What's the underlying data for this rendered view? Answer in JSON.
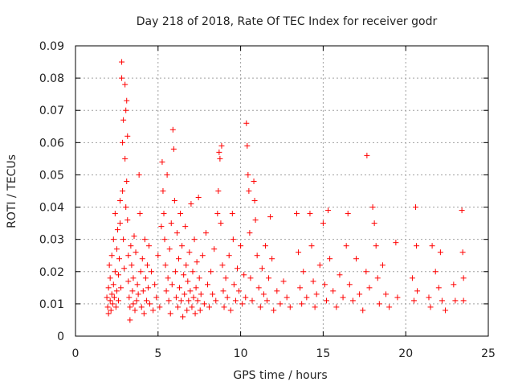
{
  "chart_data": {
    "type": "scatter",
    "title": "Day 218 of 2018, Rate Of TEC Index for receiver godr",
    "xlabel": "GPS time / hours",
    "ylabel": "ROTI / TECUs",
    "xlim": [
      0,
      25
    ],
    "ylim": [
      0,
      0.09
    ],
    "xticks": [
      0,
      5,
      10,
      15,
      20,
      25
    ],
    "xtick_labels": [
      "0",
      "5",
      "10",
      "15",
      "20",
      "25"
    ],
    "yticks": [
      0,
      0.01,
      0.02,
      0.03,
      0.04,
      0.05,
      0.06,
      0.07,
      0.08,
      0.09
    ],
    "ytick_labels": [
      "0",
      "0.01",
      "0.02",
      "0.03",
      "0.04",
      "0.05",
      "0.06",
      "0.07",
      "0.08",
      "0.09"
    ],
    "grid": true,
    "marker": "plus",
    "color": "#ff0000",
    "points": [
      [
        1.9,
        0.012
      ],
      [
        1.95,
        0.009
      ],
      [
        2.0,
        0.015
      ],
      [
        2.0,
        0.007
      ],
      [
        2.05,
        0.022
      ],
      [
        2.1,
        0.011
      ],
      [
        2.1,
        0.018
      ],
      [
        2.15,
        0.008
      ],
      [
        2.2,
        0.013
      ],
      [
        2.2,
        0.025
      ],
      [
        2.25,
        0.01
      ],
      [
        2.3,
        0.016
      ],
      [
        2.3,
        0.03
      ],
      [
        2.35,
        0.012
      ],
      [
        2.4,
        0.02
      ],
      [
        2.4,
        0.038
      ],
      [
        2.45,
        0.009
      ],
      [
        2.5,
        0.014
      ],
      [
        2.5,
        0.027
      ],
      [
        2.55,
        0.033
      ],
      [
        2.6,
        0.011
      ],
      [
        2.6,
        0.019
      ],
      [
        2.65,
        0.024
      ],
      [
        2.7,
        0.035
      ],
      [
        2.7,
        0.042
      ],
      [
        2.75,
        0.015
      ],
      [
        2.8,
        0.085
      ],
      [
        2.8,
        0.08
      ],
      [
        2.85,
        0.06
      ],
      [
        2.85,
        0.045
      ],
      [
        2.9,
        0.067
      ],
      [
        2.9,
        0.03
      ],
      [
        2.95,
        0.021
      ],
      [
        3.0,
        0.078
      ],
      [
        3.0,
        0.055
      ],
      [
        3.05,
        0.07
      ],
      [
        3.05,
        0.04
      ],
      [
        3.1,
        0.073
      ],
      [
        3.1,
        0.048
      ],
      [
        3.15,
        0.062
      ],
      [
        3.15,
        0.036
      ],
      [
        3.2,
        0.025
      ],
      [
        3.2,
        0.017
      ],
      [
        3.25,
        0.012
      ],
      [
        3.3,
        0.009
      ],
      [
        3.3,
        0.005
      ],
      [
        3.35,
        0.028
      ],
      [
        3.4,
        0.022
      ],
      [
        3.45,
        0.014
      ],
      [
        3.5,
        0.018
      ],
      [
        3.5,
        0.01
      ],
      [
        3.55,
        0.031
      ],
      [
        3.6,
        0.008
      ],
      [
        3.65,
        0.026
      ],
      [
        3.7,
        0.011
      ],
      [
        3.75,
        0.016
      ],
      [
        3.8,
        0.013
      ],
      [
        3.85,
        0.05
      ],
      [
        3.9,
        0.038
      ],
      [
        3.95,
        0.02
      ],
      [
        4.0,
        0.009
      ],
      [
        4.05,
        0.024
      ],
      [
        4.1,
        0.014
      ],
      [
        4.15,
        0.007
      ],
      [
        4.2,
        0.03
      ],
      [
        4.25,
        0.018
      ],
      [
        4.3,
        0.011
      ],
      [
        4.35,
        0.022
      ],
      [
        4.4,
        0.015
      ],
      [
        4.45,
        0.028
      ],
      [
        4.5,
        0.01
      ],
      [
        4.6,
        0.02
      ],
      [
        4.7,
        0.008
      ],
      [
        4.8,
        0.016
      ],
      [
        4.9,
        0.012
      ],
      [
        5.0,
        0.025
      ],
      [
        5.1,
        0.009
      ],
      [
        5.2,
        0.034
      ],
      [
        5.25,
        0.054
      ],
      [
        5.3,
        0.045
      ],
      [
        5.35,
        0.038
      ],
      [
        5.4,
        0.03
      ],
      [
        5.45,
        0.022
      ],
      [
        5.5,
        0.014
      ],
      [
        5.55,
        0.05
      ],
      [
        5.6,
        0.018
      ],
      [
        5.65,
        0.011
      ],
      [
        5.7,
        0.027
      ],
      [
        5.75,
        0.007
      ],
      [
        5.8,
        0.035
      ],
      [
        5.85,
        0.016
      ],
      [
        5.9,
        0.064
      ],
      [
        5.95,
        0.058
      ],
      [
        6.0,
        0.042
      ],
      [
        6.05,
        0.02
      ],
      [
        6.1,
        0.012
      ],
      [
        6.15,
        0.032
      ],
      [
        6.2,
        0.009
      ],
      [
        6.25,
        0.024
      ],
      [
        6.3,
        0.015
      ],
      [
        6.35,
        0.038
      ],
      [
        6.4,
        0.011
      ],
      [
        6.45,
        0.028
      ],
      [
        6.5,
        0.006
      ],
      [
        6.55,
        0.019
      ],
      [
        6.6,
        0.013
      ],
      [
        6.65,
        0.034
      ],
      [
        6.7,
        0.022
      ],
      [
        6.75,
        0.008
      ],
      [
        6.8,
        0.017
      ],
      [
        6.85,
        0.011
      ],
      [
        6.9,
        0.026
      ],
      [
        6.95,
        0.014
      ],
      [
        7.0,
        0.041
      ],
      [
        7.05,
        0.009
      ],
      [
        7.1,
        0.02
      ],
      [
        7.15,
        0.012
      ],
      [
        7.2,
        0.03
      ],
      [
        7.25,
        0.007
      ],
      [
        7.3,
        0.015
      ],
      [
        7.35,
        0.023
      ],
      [
        7.4,
        0.011
      ],
      [
        7.45,
        0.043
      ],
      [
        7.5,
        0.018
      ],
      [
        7.55,
        0.008
      ],
      [
        7.6,
        0.013
      ],
      [
        7.7,
        0.025
      ],
      [
        7.8,
        0.01
      ],
      [
        7.9,
        0.032
      ],
      [
        8.0,
        0.016
      ],
      [
        8.1,
        0.009
      ],
      [
        8.2,
        0.02
      ],
      [
        8.3,
        0.013
      ],
      [
        8.4,
        0.027
      ],
      [
        8.5,
        0.011
      ],
      [
        8.6,
        0.038
      ],
      [
        8.65,
        0.045
      ],
      [
        8.7,
        0.057
      ],
      [
        8.75,
        0.055
      ],
      [
        8.8,
        0.035
      ],
      [
        8.85,
        0.059
      ],
      [
        8.9,
        0.022
      ],
      [
        8.95,
        0.014
      ],
      [
        9.0,
        0.009
      ],
      [
        9.1,
        0.018
      ],
      [
        9.2,
        0.012
      ],
      [
        9.3,
        0.025
      ],
      [
        9.4,
        0.008
      ],
      [
        9.5,
        0.038
      ],
      [
        9.55,
        0.03
      ],
      [
        9.6,
        0.016
      ],
      [
        9.7,
        0.011
      ],
      [
        9.8,
        0.021
      ],
      [
        9.9,
        0.014
      ],
      [
        10.0,
        0.028
      ],
      [
        10.1,
        0.01
      ],
      [
        10.2,
        0.019
      ],
      [
        10.3,
        0.012
      ],
      [
        10.35,
        0.066
      ],
      [
        10.4,
        0.059
      ],
      [
        10.45,
        0.05
      ],
      [
        10.5,
        0.045
      ],
      [
        10.55,
        0.032
      ],
      [
        10.6,
        0.018
      ],
      [
        10.7,
        0.011
      ],
      [
        10.8,
        0.048
      ],
      [
        10.85,
        0.042
      ],
      [
        10.9,
        0.036
      ],
      [
        11.0,
        0.025
      ],
      [
        11.1,
        0.015
      ],
      [
        11.2,
        0.009
      ],
      [
        11.3,
        0.021
      ],
      [
        11.4,
        0.013
      ],
      [
        11.5,
        0.028
      ],
      [
        11.6,
        0.011
      ],
      [
        11.7,
        0.018
      ],
      [
        11.8,
        0.037
      ],
      [
        11.9,
        0.024
      ],
      [
        12.0,
        0.008
      ],
      [
        12.2,
        0.014
      ],
      [
        12.4,
        0.01
      ],
      [
        12.6,
        0.017
      ],
      [
        12.8,
        0.012
      ],
      [
        13.0,
        0.009
      ],
      [
        13.4,
        0.038
      ],
      [
        13.5,
        0.026
      ],
      [
        13.6,
        0.015
      ],
      [
        13.7,
        0.01
      ],
      [
        13.8,
        0.02
      ],
      [
        14.0,
        0.012
      ],
      [
        14.2,
        0.038
      ],
      [
        14.3,
        0.028
      ],
      [
        14.4,
        0.017
      ],
      [
        14.5,
        0.009
      ],
      [
        14.6,
        0.013
      ],
      [
        14.8,
        0.022
      ],
      [
        15.0,
        0.035
      ],
      [
        15.1,
        0.016
      ],
      [
        15.2,
        0.011
      ],
      [
        15.3,
        0.039
      ],
      [
        15.4,
        0.024
      ],
      [
        15.6,
        0.014
      ],
      [
        15.8,
        0.009
      ],
      [
        16.0,
        0.019
      ],
      [
        16.2,
        0.012
      ],
      [
        16.4,
        0.028
      ],
      [
        16.5,
        0.038
      ],
      [
        16.6,
        0.016
      ],
      [
        16.8,
        0.011
      ],
      [
        17.0,
        0.024
      ],
      [
        17.2,
        0.013
      ],
      [
        17.4,
        0.008
      ],
      [
        17.6,
        0.02
      ],
      [
        17.65,
        0.056
      ],
      [
        17.8,
        0.015
      ],
      [
        18.0,
        0.04
      ],
      [
        18.1,
        0.035
      ],
      [
        18.2,
        0.028
      ],
      [
        18.3,
        0.018
      ],
      [
        18.4,
        0.01
      ],
      [
        18.6,
        0.022
      ],
      [
        18.8,
        0.013
      ],
      [
        19.0,
        0.009
      ],
      [
        19.4,
        0.029
      ],
      [
        19.5,
        0.012
      ],
      [
        20.4,
        0.018
      ],
      [
        20.5,
        0.011
      ],
      [
        20.6,
        0.04
      ],
      [
        20.65,
        0.028
      ],
      [
        20.7,
        0.014
      ],
      [
        21.4,
        0.012
      ],
      [
        21.5,
        0.009
      ],
      [
        21.6,
        0.028
      ],
      [
        21.8,
        0.02
      ],
      [
        22.0,
        0.015
      ],
      [
        22.1,
        0.026
      ],
      [
        22.2,
        0.011
      ],
      [
        22.4,
        0.008
      ],
      [
        22.9,
        0.016
      ],
      [
        23.0,
        0.011
      ],
      [
        23.4,
        0.039
      ],
      [
        23.45,
        0.026
      ],
      [
        23.5,
        0.018
      ],
      [
        23.5,
        0.011
      ]
    ]
  }
}
